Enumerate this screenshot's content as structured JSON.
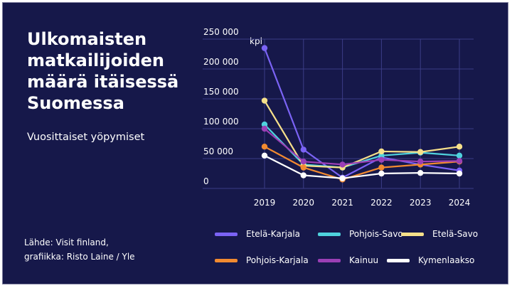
{
  "header": {
    "title": "Ulkomaisten matkailijoiden määrä itäisessä Suomessa",
    "subtitle": "Vuosittaiset yöpymiset"
  },
  "source": {
    "line1": "Lähde: Visit finland,",
    "line2": "grafiikka: Risto Laine / Yle"
  },
  "colors": {
    "background": "#16184a",
    "grid": "#3b3d86"
  },
  "chart_data": {
    "type": "line",
    "unit_label": "kpl",
    "x": [
      "2019",
      "2020",
      "2021",
      "2022",
      "2023",
      "2024"
    ],
    "ylim": [
      0,
      250000
    ],
    "y_ticks": [
      0,
      50000,
      100000,
      150000,
      200000,
      250000
    ],
    "y_tick_labels": [
      "0",
      "50 000",
      "100 000",
      "150 000",
      "200 000",
      "250 000"
    ],
    "grid": true,
    "legend_position": "bottom",
    "series": [
      {
        "name": "Etelä-Karjala",
        "color": "#7b63f5",
        "values": [
          235000,
          65000,
          18000,
          52000,
          40000,
          30000
        ]
      },
      {
        "name": "Pohjois-Savo",
        "color": "#4fd2dd",
        "values": [
          107000,
          40000,
          35000,
          55000,
          60000,
          55000
        ]
      },
      {
        "name": "Etelä-Savo",
        "color": "#f6e08a",
        "values": [
          147000,
          38000,
          35000,
          62000,
          61000,
          70000
        ]
      },
      {
        "name": "Pohjois-Karjala",
        "color": "#f28a30",
        "values": [
          70000,
          35000,
          15000,
          35000,
          40000,
          45000
        ]
      },
      {
        "name": "Kainuu",
        "color": "#9b3fb5",
        "values": [
          100000,
          45000,
          40000,
          48000,
          45000,
          46000
        ]
      },
      {
        "name": "Kymenlaakso",
        "color": "#ffffff",
        "values": [
          55000,
          22000,
          17000,
          25000,
          26000,
          25000
        ]
      }
    ]
  }
}
